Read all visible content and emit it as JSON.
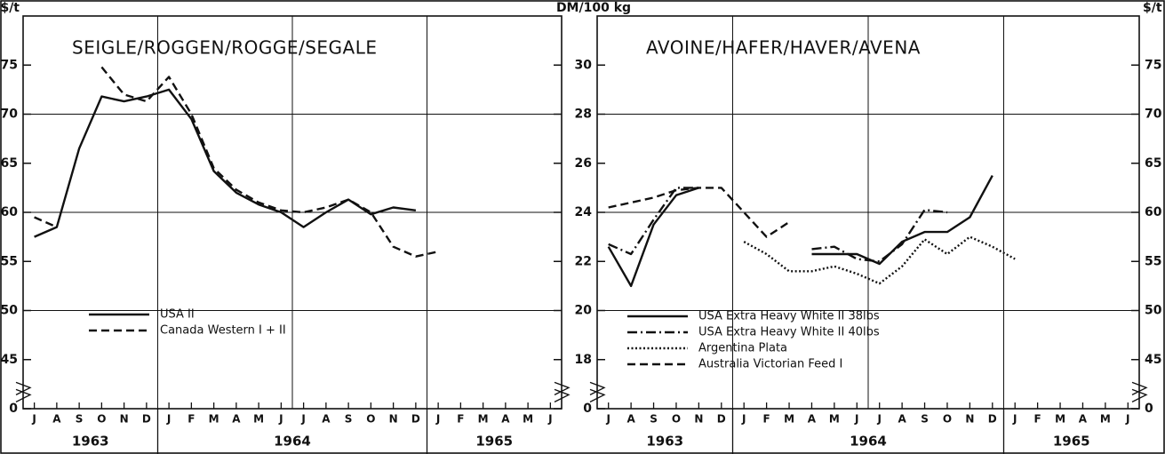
{
  "chart_data": [
    {
      "type": "line",
      "title": "SEIGLE/ROGGEN/ROGGE/SEGALE",
      "ylabel": "$/t",
      "categories": [
        "J",
        "A",
        "S",
        "O",
        "N",
        "D",
        "J",
        "F",
        "M",
        "A",
        "M",
        "J",
        "J",
        "A",
        "S",
        "O",
        "N",
        "D",
        "J",
        "F",
        "M",
        "A",
        "M",
        "J"
      ],
      "years": [
        {
          "label": "1963",
          "months": 6
        },
        {
          "label": "1964",
          "months": 12
        },
        {
          "label": "1965",
          "months": 6
        }
      ],
      "ylim": [
        0,
        80
      ],
      "yticks": [
        0,
        45,
        50,
        55,
        60,
        65,
        70,
        75
      ],
      "axis_break": true,
      "legend": "lower left",
      "series": [
        {
          "name": "USA II",
          "color": "#111111",
          "dash": "solid",
          "values": [
            57.5,
            58.5,
            66.5,
            71.8,
            71.3,
            71.8,
            72.5,
            69.5,
            64.2,
            62,
            60.8,
            60,
            58.5,
            60,
            61.3,
            59.8,
            60.5,
            60.2,
            null,
            null,
            null,
            null,
            null,
            null
          ]
        },
        {
          "name": "Canada Western I + II",
          "color": "#111111",
          "dash": "dashed",
          "values": [
            59.5,
            58.5,
            null,
            74.8,
            72,
            71.3,
            73.8,
            70,
            64.5,
            62.3,
            61,
            60.2,
            60,
            60.5,
            61.3,
            60,
            56.5,
            55.5,
            56,
            null,
            null,
            null,
            null,
            null
          ]
        }
      ]
    },
    {
      "type": "line",
      "title": "AVOINE/HAFER/HAVER/AVENA",
      "ylabel": "DM/100 kg",
      "y2label": "$/t",
      "categories": [
        "J",
        "A",
        "S",
        "O",
        "N",
        "D",
        "J",
        "F",
        "M",
        "A",
        "M",
        "J",
        "J",
        "A",
        "S",
        "O",
        "N",
        "D",
        "J",
        "F",
        "M",
        "A",
        "M",
        "J"
      ],
      "years": [
        {
          "label": "1963",
          "months": 6
        },
        {
          "label": "1964",
          "months": 12
        },
        {
          "label": "1965",
          "months": 6
        }
      ],
      "ylim": [
        0,
        32
      ],
      "yticks": [
        0,
        18,
        20,
        22,
        24,
        26,
        28,
        30
      ],
      "y2lim": [
        0,
        80
      ],
      "y2ticks": [
        0,
        45,
        50,
        55,
        60,
        65,
        70,
        75
      ],
      "axis_break": true,
      "legend": "lower left",
      "series": [
        {
          "name": "USA Extra Heavy White II 38lbs",
          "color": "#111111",
          "dash": "solid",
          "values": [
            22.6,
            21,
            23.5,
            24.7,
            25,
            null,
            null,
            null,
            null,
            22.3,
            22.3,
            22.3,
            21.9,
            22.8,
            23.2,
            23.2,
            23.8,
            25.5,
            null,
            null,
            null,
            null,
            null,
            null
          ]
        },
        {
          "name": "USA Extra Heavy White II 40lbs",
          "color": "#111111",
          "dash": "dashdot",
          "values": [
            22.7,
            22.3,
            23.7,
            25,
            25,
            null,
            null,
            null,
            null,
            22.5,
            22.6,
            22.1,
            22,
            22.7,
            24.1,
            24,
            null,
            null,
            null,
            null,
            null,
            null,
            null,
            null
          ]
        },
        {
          "name": "Argentina Plata",
          "color": "#111111",
          "dash": "dotted",
          "values": [
            null,
            null,
            null,
            null,
            null,
            null,
            22.8,
            22.3,
            21.6,
            21.6,
            21.8,
            21.5,
            21.1,
            21.8,
            22.9,
            22.3,
            23,
            22.6,
            22.1,
            null,
            null,
            null,
            null,
            null
          ]
        },
        {
          "name": "Australia Victorian Feed I",
          "color": "#111111",
          "dash": "dashed",
          "values": [
            24.2,
            24.4,
            24.6,
            24.9,
            25,
            25,
            24,
            23,
            23.6,
            null,
            null,
            null,
            null,
            null,
            null,
            null,
            null,
            null,
            null,
            null,
            null,
            null,
            null,
            null
          ]
        }
      ]
    }
  ]
}
